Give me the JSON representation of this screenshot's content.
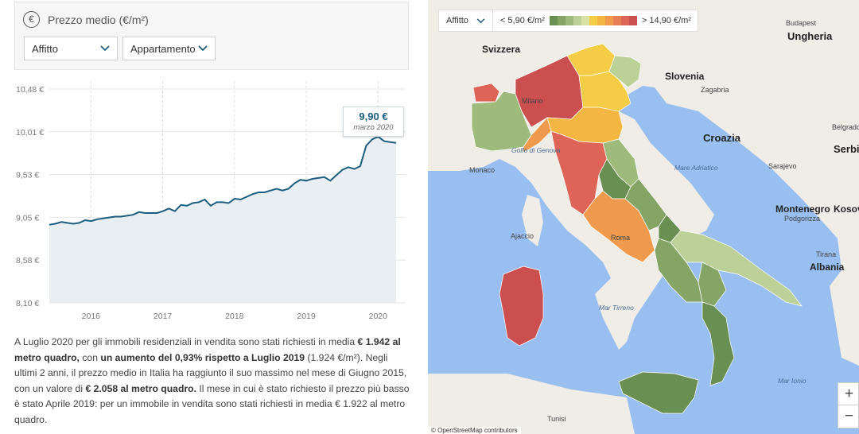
{
  "filters": {
    "title": "Prezzo medio (€/m²)",
    "euro_symbol": "€",
    "contract_select": "Affitto",
    "type_select": "Appartamento"
  },
  "chart_data": {
    "type": "area",
    "y_ticks": [
      "10,48 €",
      "10,01 €",
      "9,53 €",
      "9,05 €",
      "8,58 €",
      "8,10 €"
    ],
    "x_ticks": [
      "2016",
      "2017",
      "2018",
      "2019",
      "2020"
    ],
    "ylim": [
      8.1,
      10.48
    ],
    "x_start": 2015.42,
    "x_step": 0.0833,
    "values": [
      8.97,
      8.98,
      9.0,
      8.99,
      8.98,
      8.99,
      9.02,
      9.01,
      9.03,
      9.04,
      9.05,
      9.06,
      9.06,
      9.07,
      9.08,
      9.11,
      9.1,
      9.1,
      9.1,
      9.12,
      9.15,
      9.12,
      9.19,
      9.18,
      9.21,
      9.22,
      9.25,
      9.18,
      9.22,
      9.22,
      9.21,
      9.26,
      9.25,
      9.28,
      9.31,
      9.33,
      9.33,
      9.35,
      9.37,
      9.35,
      9.37,
      9.43,
      9.47,
      9.46,
      9.48,
      9.49,
      9.5,
      9.46,
      9.52,
      9.58,
      9.61,
      9.59,
      9.62,
      9.85,
      9.92,
      9.95,
      9.9,
      9.89,
      9.88
    ],
    "highlight": {
      "value_label": "9,90 €",
      "date_label": "marzo 2020"
    },
    "line_color": "#1d5d80",
    "fill_color": "#e9eef2"
  },
  "description": {
    "p1": "A Luglio 2020 per gli immobili residenziali in vendita sono stati richiesti in media ",
    "b1": "€ 1.942 al metro quadro,",
    "p2": " con ",
    "b2": "un aumento del 0,93% rispetto a Luglio 2019",
    "p3": " (1.924 €/m²). Negli ultimi 2 anni, il prezzo medio in Italia ha raggiunto il suo massimo nel mese di Giugno 2015, con un valore di ",
    "b3": "€ 2.058 al metro quadro.",
    "p4": " Il mese in cui è stato richiesto il prezzo più basso è stato Aprile 2019: per un immobile in vendita sono stati richiesti in media € 1.922 al metro quadro."
  },
  "map": {
    "legend_select": "Affitto",
    "legend_min": "< 5,90 €/m²",
    "legend_max": "> 14,90 €/m²",
    "legend_colors": [
      "#6a8f52",
      "#84a566",
      "#9fbb7c",
      "#bbd198",
      "#d8e1a6",
      "#f5cc45",
      "#f4b640",
      "#ef9a4c",
      "#e87e55",
      "#dd6457",
      "#cc4f4f"
    ],
    "zoom_in": "+",
    "zoom_out": "−",
    "attribution": "© OpenStreetMap contributors",
    "labels": {
      "svizzera": "Svizzera",
      "slovenia": "Slovenia",
      "croazia": "Croazia",
      "ungheria": "Ungheria",
      "budapest": "Budapest",
      "zagabria": "Zagabria",
      "sarajevo": "Sarajevo",
      "montenegro": "Montenegro",
      "podgorizza": "Podgorizza",
      "tirana": "Tirana",
      "albania": "Albania",
      "monaco": "Monaco",
      "tunisi": "Tunisi",
      "milano": "Milano",
      "roma": "Roma",
      "ajaccio": "Ajaccio",
      "belgrado": "Belgrado",
      "serbia": "Serbi",
      "kosovo": "Kosov",
      "mare_adriatico": "Mare Adriatico",
      "mar_tirreno": "Mar Tirreno",
      "mar_ionio": "Mar Ionio",
      "golfo_genova": "Golfo di Genova"
    }
  }
}
